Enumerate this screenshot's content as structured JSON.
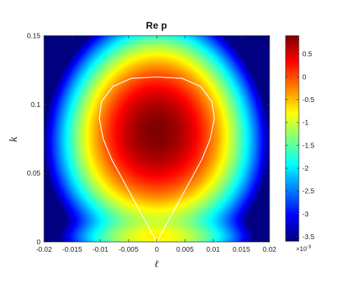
{
  "chart_data": {
    "type": "heatmap",
    "title": "Re p",
    "xlabel": "ℓ",
    "ylabel": "k",
    "xlim": [
      -0.02,
      0.02
    ],
    "ylim": [
      0,
      0.15
    ],
    "x_ticks": [
      "-0.02",
      "-0.015",
      "-0.01",
      "-0.005",
      "0",
      "0.005",
      "0.01",
      "0.015",
      "0.02"
    ],
    "x_tick_values": [
      -0.02,
      -0.015,
      -0.01,
      -0.005,
      0,
      0.005,
      0.01,
      0.015,
      0.02
    ],
    "y_ticks": [
      "0",
      "0.05",
      "0.1",
      "0.15"
    ],
    "y_tick_values": [
      0,
      0.05,
      0.1,
      0.15
    ],
    "colorbar": {
      "range": [
        -3.6,
        0.9
      ],
      "ticks": [
        "0.5",
        "0",
        "-0.5",
        "-1",
        "-1.5",
        "-2",
        "-2.5",
        "-3",
        "-3.5"
      ],
      "tick_values": [
        0.5,
        0,
        -0.5,
        -1,
        -1.5,
        -2,
        -2.5,
        -3,
        -3.5
      ],
      "exponent_base": "×10",
      "exponent_power": "-3",
      "colormap": "jet"
    },
    "zero_contour": {
      "color": "#ffffff",
      "points": [
        [
          0,
          0
        ],
        [
          -0.002,
          0.015
        ],
        [
          -0.004,
          0.03
        ],
        [
          -0.006,
          0.045
        ],
        [
          -0.008,
          0.06
        ],
        [
          -0.0095,
          0.075
        ],
        [
          -0.0102,
          0.09
        ],
        [
          -0.0098,
          0.102
        ],
        [
          -0.0078,
          0.113
        ],
        [
          -0.0045,
          0.119
        ],
        [
          0,
          0.12
        ],
        [
          0.0045,
          0.119
        ],
        [
          0.0078,
          0.113
        ],
        [
          0.0098,
          0.102
        ],
        [
          0.0102,
          0.09
        ],
        [
          0.0095,
          0.075
        ],
        [
          0.008,
          0.06
        ],
        [
          0.006,
          0.045
        ],
        [
          0.004,
          0.03
        ],
        [
          0.002,
          0.015
        ],
        [
          0,
          0
        ]
      ]
    },
    "field_model": {
      "peak_value": 0.9,
      "peak_location": [
        0,
        0.08
      ],
      "min_value": -3.6
    }
  }
}
